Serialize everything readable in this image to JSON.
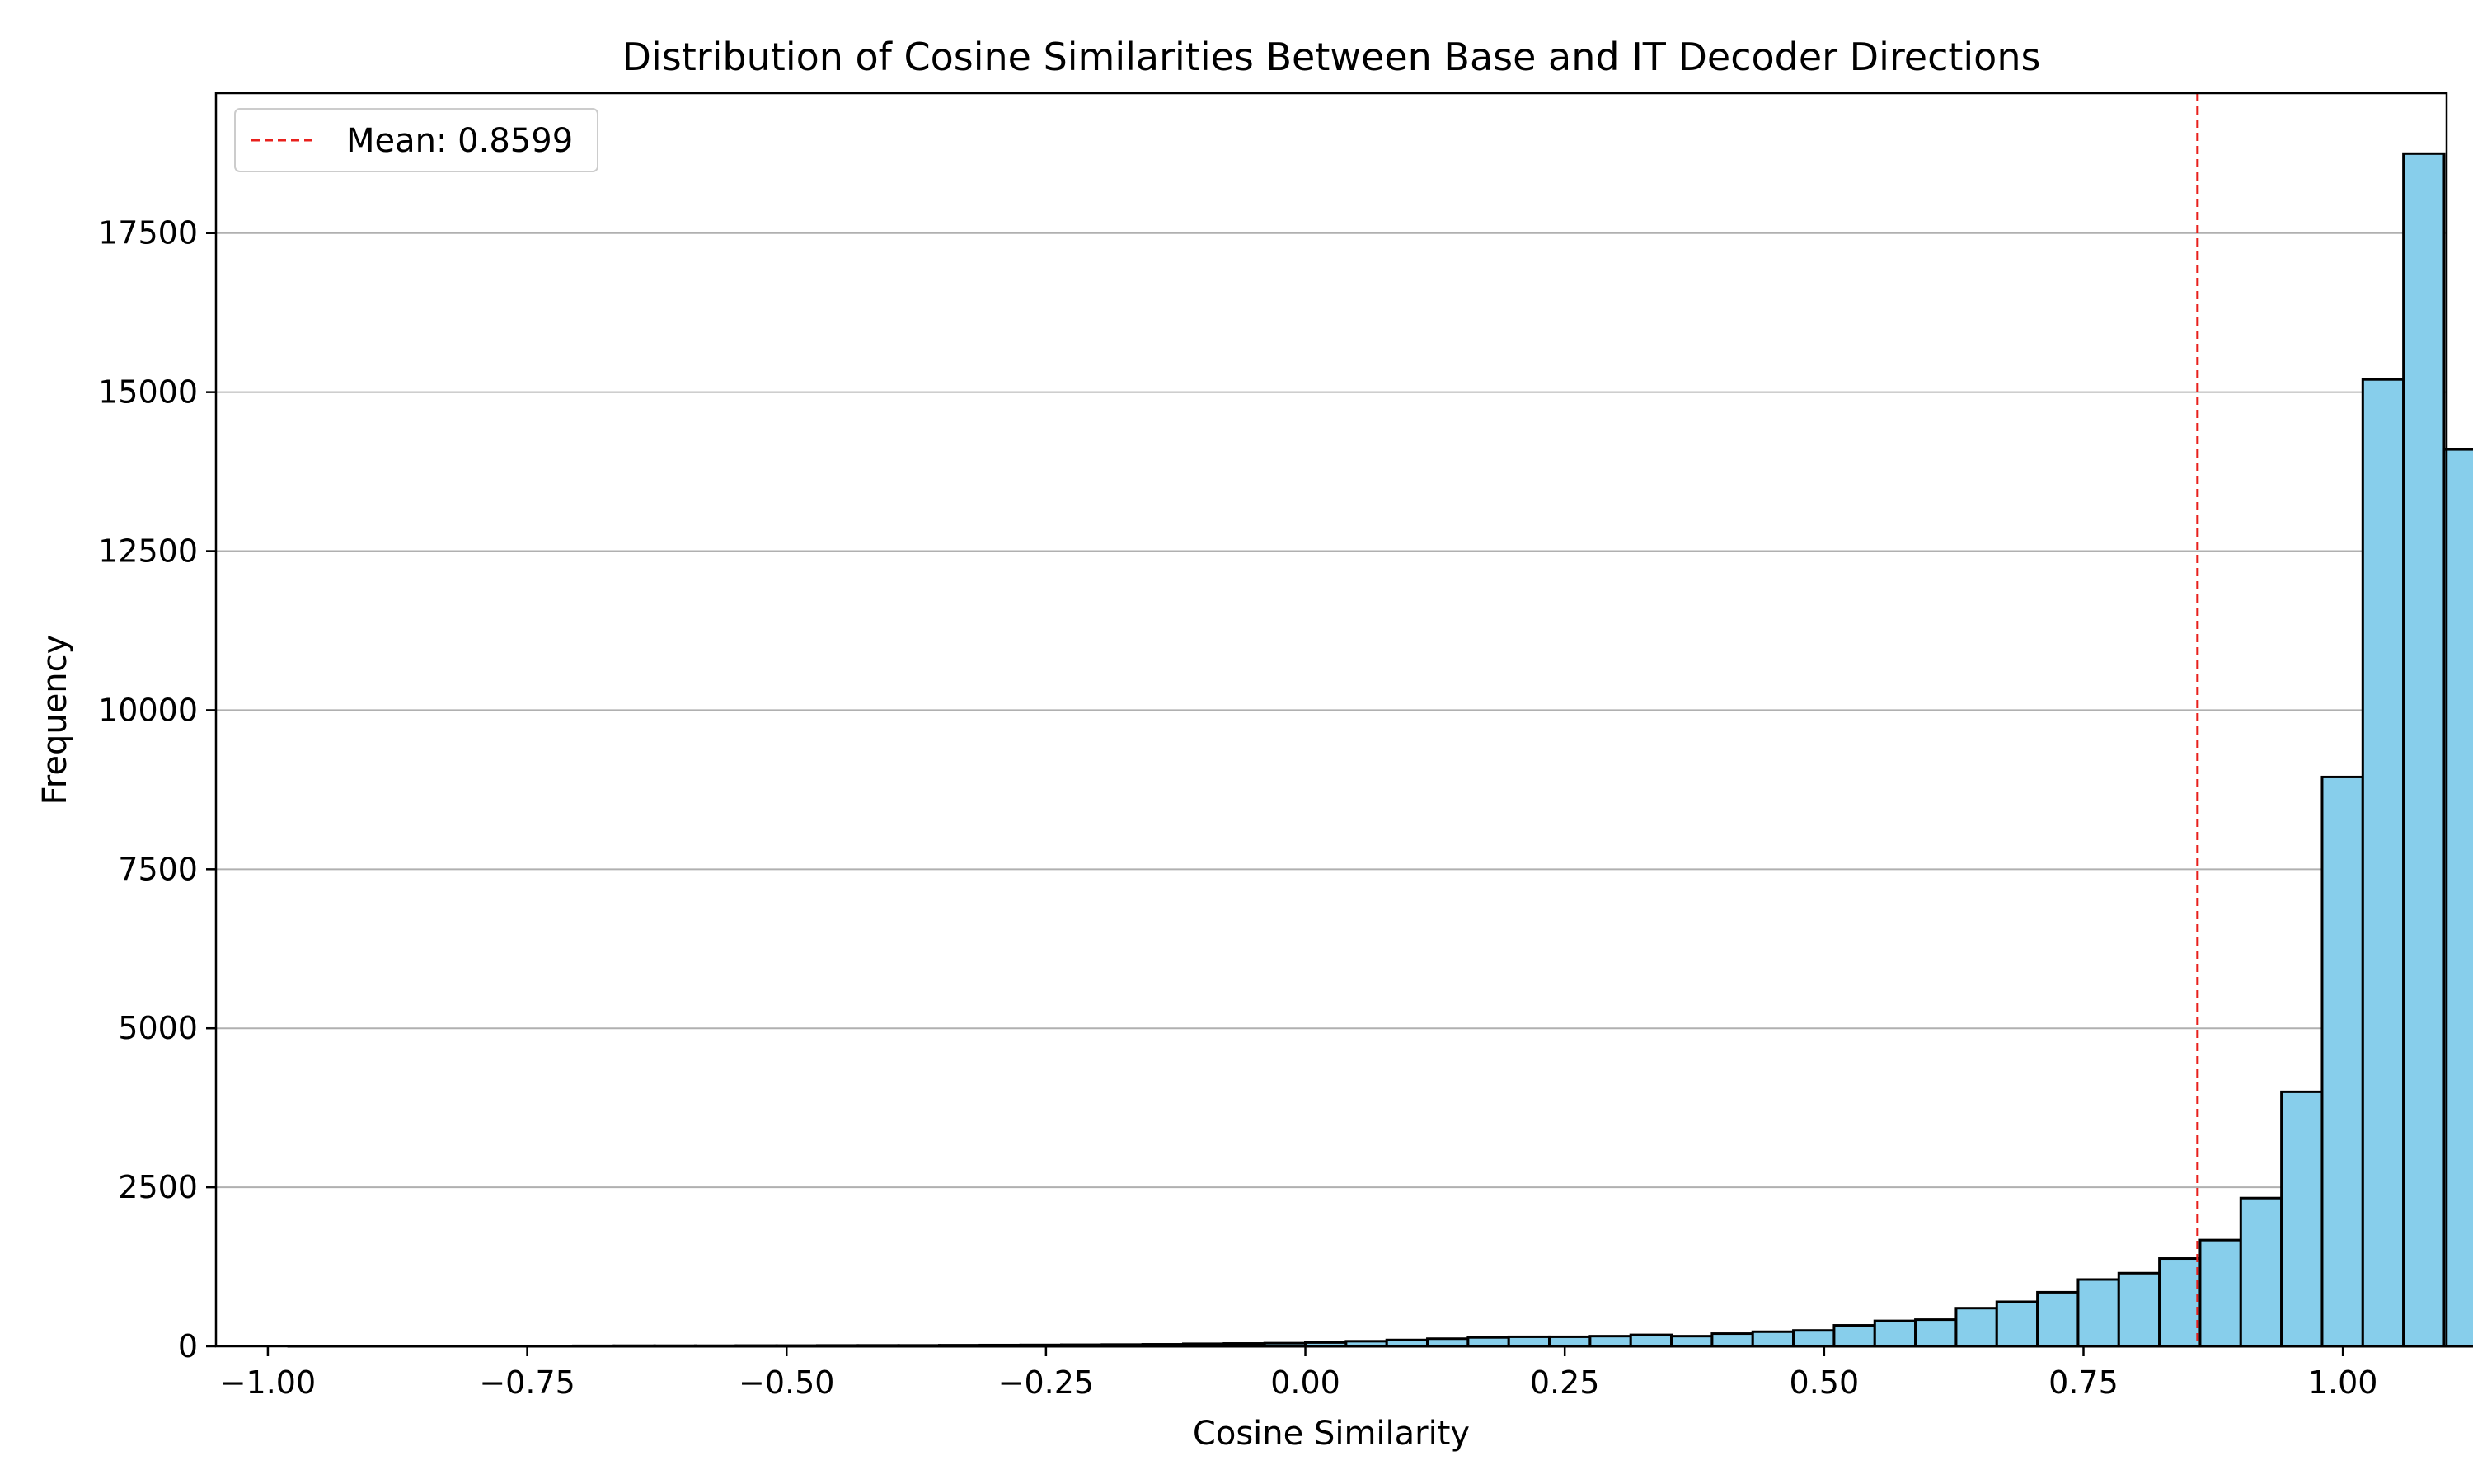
{
  "chart_data": {
    "type": "bar",
    "title": "Distribution of Cosine Similarities Between Base and IT Decoder Directions",
    "xlabel": "Cosine Similarity",
    "ylabel": "Frequency",
    "xlim": [
      -1.05,
      1.1
    ],
    "ylim": [
      0,
      19700
    ],
    "x_ticks": [
      -1.0,
      -0.75,
      -0.5,
      -0.25,
      0.0,
      0.25,
      0.5,
      0.75,
      1.0
    ],
    "x_tick_labels": [
      "−1.00",
      "−0.75",
      "−0.50",
      "−0.25",
      "0.00",
      "0.25",
      "0.50",
      "0.75",
      "1.00"
    ],
    "y_ticks": [
      0,
      2500,
      5000,
      7500,
      10000,
      12500,
      15000,
      17500
    ],
    "y_tick_labels": [
      "0",
      "2500",
      "5000",
      "7500",
      "10000",
      "12500",
      "15000",
      "17500"
    ],
    "grid": "horizontal",
    "legend_position": "top-left",
    "bins": {
      "start": -0.98,
      "width": 0.0392,
      "counts": [
        2,
        2,
        3,
        3,
        3,
        3,
        5,
        8,
        10,
        10,
        10,
        12,
        12,
        14,
        15,
        15,
        18,
        20,
        22,
        25,
        28,
        32,
        40,
        45,
        50,
        60,
        80,
        100,
        120,
        140,
        150,
        150,
        160,
        180,
        160,
        200,
        230,
        250,
        330,
        400,
        420,
        600,
        700,
        850,
        1050,
        1150,
        1380,
        1670,
        2330,
        4000,
        8950,
        15200,
        18750,
        14100
      ]
    },
    "mean_line": {
      "value": 0.8599,
      "label": "Mean: 0.8599"
    },
    "colors": {
      "bar_fill": "#87ceeb",
      "bar_edge": "#000000",
      "mean_line": "#e8201c",
      "grid": "#b0b0b0"
    }
  }
}
